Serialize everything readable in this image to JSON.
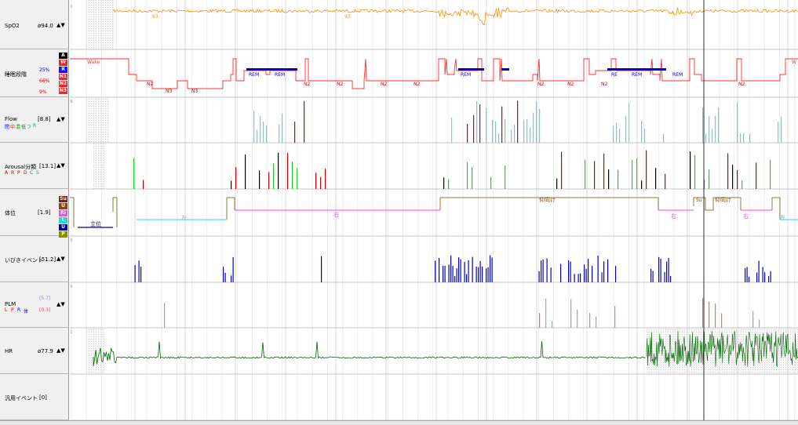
{
  "rows": {
    "spo2": {
      "name": "SpO2",
      "value": "ø94.0",
      "scale_top": "100",
      "scale_bottom": "70",
      "trace_labels": [
        "93",
        "93"
      ]
    },
    "stage": {
      "name": "睡眠段階",
      "pcts": [
        "25%",
        "66%",
        "9%"
      ],
      "boxes": [
        "A",
        "W",
        "R",
        "N1",
        "N2",
        "N3"
      ],
      "trace_labels": [
        "Wake",
        "N2",
        "N3",
        "N3",
        "REM",
        "REM",
        "N2",
        "N2",
        "N2",
        "N2",
        "REM",
        "N2",
        "N2",
        "N2",
        "RE",
        "REM",
        "REM",
        "N2",
        "W"
      ]
    },
    "flow": {
      "name": "Flow",
      "value": "[8.8]",
      "sub": [
        "閉",
        "中",
        "混",
        "低",
        "フ",
        "R"
      ],
      "scale_top": "116"
    },
    "arousal": {
      "name": "Arousal分類",
      "value": "[13.1]",
      "sub": [
        "A",
        "R",
        "P",
        "D",
        "C",
        "S"
      ],
      "scale_top": "28"
    },
    "position": {
      "name": "体位",
      "value": "[1.9]",
      "boxes": [
        "Su",
        "U",
        "Ri",
        "L",
        "U",
        "P"
      ],
      "trace_labels": [
        "立位",
        "左",
        "右",
        "仰向け",
        "右",
        "Su",
        "仰向け",
        "右",
        "左"
      ]
    },
    "snore": {
      "name": "いびきイベント",
      "value": "[51.2]",
      "scale_top": "100"
    },
    "plm": {
      "name": "PLM",
      "value_a": "[5.7]",
      "value_b": "[0.3]",
      "sub": [
        "L",
        "P",
        "R",
        "体"
      ],
      "scale_top": "205"
    },
    "hr": {
      "name": "HR",
      "value": "ø77.9",
      "scale_top": "241"
    },
    "general": {
      "name": "汎用イベント",
      "value": "[0]"
    }
  },
  "arrows": "▲▼",
  "colors": {
    "spo2": "#ff8c00",
    "stage": "#ff3030",
    "rem": "#0000cc",
    "flow": "#40e0f0",
    "arousal_black": "#000000",
    "arousal_green": "#22cc22",
    "arousal_red": "#cc0000",
    "position": "#ff40ff",
    "position_dark": "#8b4513",
    "position_blue": "#00008b",
    "position_cyan": "#30d0d8",
    "snore": "#0000cc",
    "plm": "#9999ff",
    "hr": "#006400",
    "hr_pink": "#ff1493"
  }
}
